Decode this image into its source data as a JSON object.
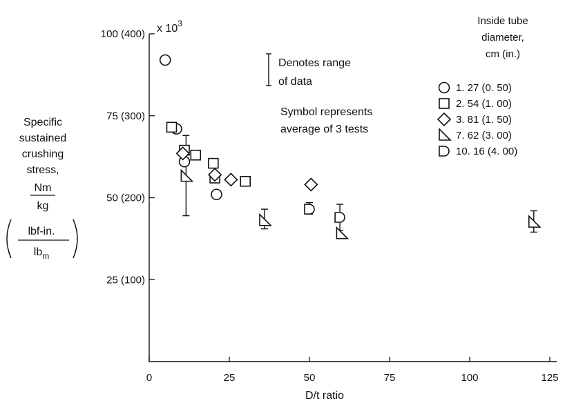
{
  "chart_data": {
    "type": "scatter",
    "xlabel": "D/t ratio",
    "xlim": [
      0,
      125
    ],
    "ylim": [
      0,
      100
    ],
    "x_ticks": [
      "0",
      "25",
      "50",
      "75",
      "100",
      "125"
    ],
    "y_ticks": [
      "25 (100)",
      "50 (200)",
      "75 (300)",
      "100 (400)"
    ],
    "y_multiplier": "x 10",
    "y_multiplier_exp": "3",
    "ylabel_lines": [
      "Specific",
      "sustained",
      "crushing",
      "stress,"
    ],
    "ylabel_frac_si": {
      "num": "Nm",
      "den": "kg"
    },
    "ylabel_frac_us": {
      "num": "lbf-in.",
      "den": "lb",
      "den_sub": "m"
    },
    "range_note_lines": [
      "Denotes range",
      "of data"
    ],
    "symbol_note_lines": [
      "Symbol represents",
      "average of 3 tests"
    ],
    "legend_title_lines": [
      "Inside tube",
      "diameter,",
      "cm (in.)"
    ],
    "series": [
      {
        "name": "1. 27 (0. 50)",
        "marker": "circle",
        "points": [
          {
            "x": 5,
            "y": 92
          },
          {
            "x": 8.5,
            "y": 71
          },
          {
            "x": 11,
            "y": 61
          },
          {
            "x": 21,
            "y": 51
          }
        ]
      },
      {
        "name": "2. 54 (1. 00)",
        "marker": "square",
        "points": [
          {
            "x": 7,
            "y": 71.5
          },
          {
            "x": 11,
            "y": 64.5
          },
          {
            "x": 14.5,
            "y": 63
          },
          {
            "x": 20,
            "y": 60.5
          },
          {
            "x": 20.5,
            "y": 56
          },
          {
            "x": 30,
            "y": 55
          }
        ]
      },
      {
        "name": "3. 81 (1. 50)",
        "marker": "diamond",
        "points": [
          {
            "x": 10.5,
            "y": 63.5
          },
          {
            "x": 20.5,
            "y": 57
          },
          {
            "x": 25.5,
            "y": 55.5
          },
          {
            "x": 50.5,
            "y": 54
          }
        ]
      },
      {
        "name": "7. 62 (3. 00)",
        "marker": "right-triangle",
        "points": [
          {
            "x": 11.5,
            "y": 56.5
          },
          {
            "x": 36,
            "y": 43
          },
          {
            "x": 60,
            "y": 39
          },
          {
            "x": 120,
            "y": 42.5
          }
        ],
        "error_bars": [
          {
            "x": 11.5,
            "low": 44.5,
            "high": 69
          },
          {
            "x": 36,
            "low": 40.5,
            "high": 46.5
          },
          {
            "x": 120,
            "low": 39.5,
            "high": 46
          }
        ]
      },
      {
        "name": "10. 16 (4. 00)",
        "marker": "half-round",
        "points": [
          {
            "x": 50,
            "y": 46.5
          },
          {
            "x": 59.5,
            "y": 44
          }
        ],
        "error_bars": [
          {
            "x": 50,
            "low": 45,
            "high": 48.5
          },
          {
            "x": 59.5,
            "low": 40,
            "high": 48
          }
        ]
      }
    ]
  }
}
